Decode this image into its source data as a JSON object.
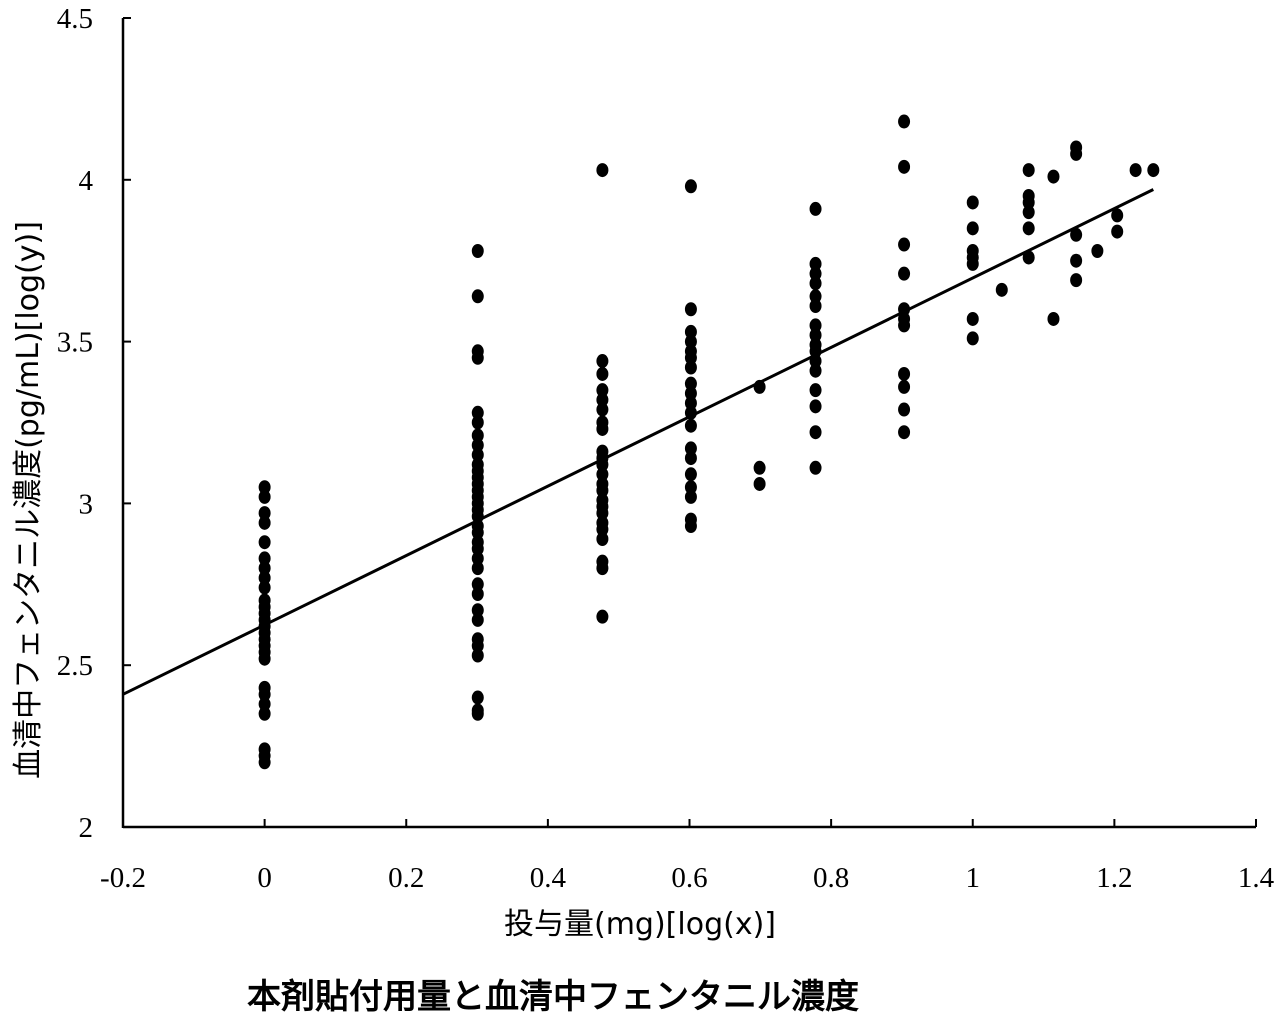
{
  "chart_data": {
    "type": "scatter",
    "title": "本剤貼付用量と血清中フェンタニル濃度",
    "xlabel": "投与量(mg)[log(x)]",
    "ylabel": "血清中フェンタニル濃度(pg/mL)[log(y)]",
    "xlim": [
      -0.2,
      1.4
    ],
    "ylim": [
      2,
      4.5
    ],
    "xticks": [
      "-0.2",
      "0",
      "0.2",
      "0.4",
      "0.6",
      "0.8",
      "1",
      "1.2",
      "1.4"
    ],
    "yticks": [
      "2",
      "2.5",
      "3",
      "3.5",
      "4",
      "4.5"
    ],
    "grid": false,
    "legend": "none",
    "series": [
      {
        "kind": "points",
        "points": [
          [
            0,
            3.05
          ],
          [
            0,
            3.02
          ],
          [
            0,
            2.97
          ],
          [
            0,
            2.94
          ],
          [
            0,
            2.88
          ],
          [
            0,
            2.83
          ],
          [
            0,
            2.8
          ],
          [
            0,
            2.77
          ],
          [
            0,
            2.74
          ],
          [
            0,
            2.7
          ],
          [
            0,
            2.68
          ],
          [
            0,
            2.66
          ],
          [
            0,
            2.64
          ],
          [
            0,
            2.62
          ],
          [
            0,
            2.6
          ],
          [
            0,
            2.58
          ],
          [
            0,
            2.56
          ],
          [
            0,
            2.54
          ],
          [
            0,
            2.52
          ],
          [
            0,
            2.43
          ],
          [
            0,
            2.41
          ],
          [
            0,
            2.38
          ],
          [
            0,
            2.35
          ],
          [
            0,
            2.24
          ],
          [
            0,
            2.22
          ],
          [
            0,
            2.2
          ],
          [
            0.301,
            3.78
          ],
          [
            0.301,
            3.64
          ],
          [
            0.301,
            3.47
          ],
          [
            0.301,
            3.45
          ],
          [
            0.301,
            3.28
          ],
          [
            0.301,
            3.25
          ],
          [
            0.301,
            3.21
          ],
          [
            0.301,
            3.18
          ],
          [
            0.301,
            3.15
          ],
          [
            0.301,
            3.12
          ],
          [
            0.301,
            3.1
          ],
          [
            0.301,
            3.08
          ],
          [
            0.301,
            3.06
          ],
          [
            0.301,
            3.04
          ],
          [
            0.301,
            3.02
          ],
          [
            0.301,
            3.0
          ],
          [
            0.301,
            2.98
          ],
          [
            0.301,
            2.96
          ],
          [
            0.301,
            2.93
          ],
          [
            0.301,
            2.91
          ],
          [
            0.301,
            2.88
          ],
          [
            0.301,
            2.86
          ],
          [
            0.301,
            2.83
          ],
          [
            0.301,
            2.8
          ],
          [
            0.301,
            2.75
          ],
          [
            0.301,
            2.72
          ],
          [
            0.301,
            2.67
          ],
          [
            0.301,
            2.64
          ],
          [
            0.301,
            2.58
          ],
          [
            0.301,
            2.56
          ],
          [
            0.301,
            2.53
          ],
          [
            0.301,
            2.4
          ],
          [
            0.301,
            2.36
          ],
          [
            0.301,
            2.35
          ],
          [
            0.477,
            4.03
          ],
          [
            0.477,
            3.44
          ],
          [
            0.477,
            3.4
          ],
          [
            0.477,
            3.35
          ],
          [
            0.477,
            3.32
          ],
          [
            0.477,
            3.29
          ],
          [
            0.477,
            3.25
          ],
          [
            0.477,
            3.23
          ],
          [
            0.477,
            3.16
          ],
          [
            0.477,
            3.14
          ],
          [
            0.477,
            3.12
          ],
          [
            0.477,
            3.09
          ],
          [
            0.477,
            3.06
          ],
          [
            0.477,
            3.04
          ],
          [
            0.477,
            3.01
          ],
          [
            0.477,
            2.99
          ],
          [
            0.477,
            2.97
          ],
          [
            0.477,
            2.94
          ],
          [
            0.477,
            2.92
          ],
          [
            0.477,
            2.89
          ],
          [
            0.477,
            2.82
          ],
          [
            0.477,
            2.8
          ],
          [
            0.477,
            2.65
          ],
          [
            0.602,
            3.98
          ],
          [
            0.602,
            3.6
          ],
          [
            0.602,
            3.53
          ],
          [
            0.602,
            3.5
          ],
          [
            0.602,
            3.47
          ],
          [
            0.602,
            3.45
          ],
          [
            0.602,
            3.42
          ],
          [
            0.602,
            3.37
          ],
          [
            0.602,
            3.34
          ],
          [
            0.602,
            3.31
          ],
          [
            0.602,
            3.28
          ],
          [
            0.602,
            3.24
          ],
          [
            0.602,
            3.17
          ],
          [
            0.602,
            3.14
          ],
          [
            0.602,
            3.09
          ],
          [
            0.602,
            3.05
          ],
          [
            0.602,
            3.02
          ],
          [
            0.602,
            2.95
          ],
          [
            0.602,
            2.93
          ],
          [
            0.699,
            3.36
          ],
          [
            0.699,
            3.11
          ],
          [
            0.699,
            3.06
          ],
          [
            0.778,
            3.91
          ],
          [
            0.778,
            3.74
          ],
          [
            0.778,
            3.71
          ],
          [
            0.778,
            3.68
          ],
          [
            0.778,
            3.64
          ],
          [
            0.778,
            3.61
          ],
          [
            0.778,
            3.55
          ],
          [
            0.778,
            3.52
          ],
          [
            0.778,
            3.49
          ],
          [
            0.778,
            3.47
          ],
          [
            0.778,
            3.44
          ],
          [
            0.778,
            3.41
          ],
          [
            0.778,
            3.35
          ],
          [
            0.778,
            3.3
          ],
          [
            0.778,
            3.22
          ],
          [
            0.778,
            3.11
          ],
          [
            0.903,
            4.18
          ],
          [
            0.903,
            4.04
          ],
          [
            0.903,
            3.8
          ],
          [
            0.903,
            3.71
          ],
          [
            0.903,
            3.6
          ],
          [
            0.903,
            3.57
          ],
          [
            0.903,
            3.55
          ],
          [
            0.903,
            3.4
          ],
          [
            0.903,
            3.36
          ],
          [
            0.903,
            3.29
          ],
          [
            0.903,
            3.22
          ],
          [
            1.0,
            3.93
          ],
          [
            1.0,
            3.85
          ],
          [
            1.0,
            3.78
          ],
          [
            1.0,
            3.76
          ],
          [
            1.0,
            3.74
          ],
          [
            1.0,
            3.57
          ],
          [
            1.0,
            3.51
          ],
          [
            1.041,
            3.66
          ],
          [
            1.079,
            4.03
          ],
          [
            1.079,
            3.95
          ],
          [
            1.079,
            3.93
          ],
          [
            1.079,
            3.9
          ],
          [
            1.079,
            3.85
          ],
          [
            1.079,
            3.76
          ],
          [
            1.114,
            4.01
          ],
          [
            1.114,
            3.57
          ],
          [
            1.146,
            4.1
          ],
          [
            1.146,
            4.08
          ],
          [
            1.146,
            3.83
          ],
          [
            1.146,
            3.75
          ],
          [
            1.146,
            3.69
          ],
          [
            1.176,
            3.78
          ],
          [
            1.204,
            3.89
          ],
          [
            1.204,
            3.84
          ],
          [
            1.23,
            4.03
          ],
          [
            1.255,
            4.03
          ]
        ]
      },
      {
        "kind": "regression-line",
        "x": [
          -0.2,
          1.255
        ],
        "y": [
          2.41,
          3.97
        ]
      }
    ]
  }
}
